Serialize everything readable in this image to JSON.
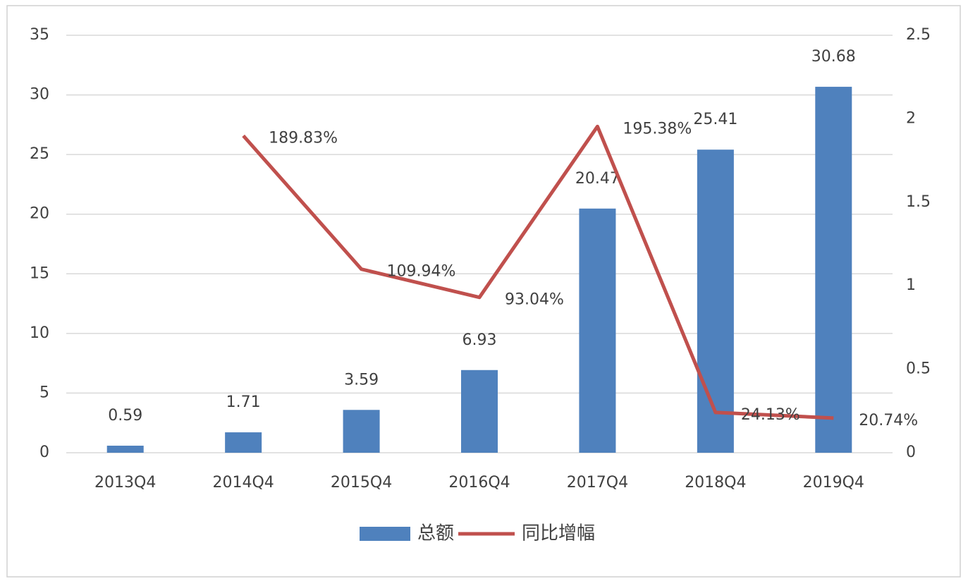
{
  "chart_data": {
    "type": "bar",
    "categories": [
      "2013Q4",
      "2014Q4",
      "2015Q4",
      "2016Q4",
      "2017Q4",
      "2018Q4",
      "2019Q4"
    ],
    "series": [
      {
        "name": "总额",
        "type": "bar",
        "color": "#4f81bd",
        "values": [
          0.59,
          1.71,
          3.59,
          6.93,
          20.47,
          25.41,
          30.68
        ]
      },
      {
        "name": "同比增幅",
        "type": "line",
        "axis": "y2",
        "color": "#c0504d",
        "values": [
          null,
          1.8983,
          1.0994,
          0.9304,
          1.9538,
          0.2413,
          0.2074
        ],
        "value_labels": [
          null,
          "189.83%",
          "109.94%",
          "93.04%",
          "195.38%",
          "24.13%",
          "20.74%"
        ]
      }
    ],
    "ylim": [
      0,
      35
    ],
    "yticks": [
      0,
      5,
      10,
      15,
      20,
      25,
      30,
      35
    ],
    "y2lim": [
      0,
      2.5
    ],
    "y2ticks": [
      0,
      0.5,
      1,
      1.5,
      2,
      2.5
    ],
    "grid": true,
    "legend": "bottom"
  }
}
